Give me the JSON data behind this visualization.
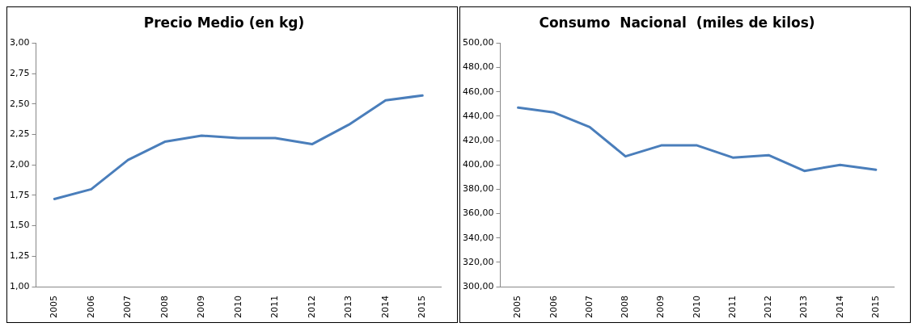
{
  "chart_data": [
    {
      "type": "line",
      "title": "Precio Medio (en kg)",
      "categories": [
        "2005",
        "2006",
        "2007",
        "2008",
        "2009",
        "2010",
        "2011",
        "2012",
        "2013",
        "2014",
        "2015"
      ],
      "series": [
        {
          "color": "#4a7ebb",
          "values": [
            1.72,
            1.8,
            2.04,
            2.19,
            2.24,
            2.22,
            2.22,
            2.17,
            2.33,
            2.53,
            2.57
          ]
        }
      ],
      "ylim": [
        1,
        3
      ],
      "yticks": [
        {
          "value": 1,
          "label": "1,00"
        },
        {
          "value": 1.25,
          "label": "1,25"
        },
        {
          "value": 1.5,
          "label": "1,50"
        },
        {
          "value": 1.75,
          "label": "1,75"
        },
        {
          "value": 2,
          "label": "2,00"
        },
        {
          "value": 2.25,
          "label": "2,25"
        },
        {
          "value": 2.5,
          "label": "2,50"
        },
        {
          "value": 2.75,
          "label": "2,75"
        },
        {
          "value": 3,
          "label": "3,00"
        }
      ],
      "grid": false,
      "legend": false,
      "marker": "none",
      "line_style": "solid"
    },
    {
      "type": "line",
      "title": "Consumo  Nacional  (miles de kilos)",
      "categories": [
        "2005",
        "2006",
        "2007",
        "2008",
        "2009",
        "2010",
        "2011",
        "2012",
        "2013",
        "2014",
        "2015"
      ],
      "series": [
        {
          "color": "#4a7ebb",
          "values": [
            447,
            443,
            431,
            407,
            416,
            416,
            406,
            408,
            395,
            400,
            396
          ]
        }
      ],
      "ylim": [
        300,
        500
      ],
      "yticks": [
        {
          "value": 300,
          "label": "300,00"
        },
        {
          "value": 320,
          "label": "320,00"
        },
        {
          "value": 340,
          "label": "340,00"
        },
        {
          "value": 360,
          "label": "360,00"
        },
        {
          "value": 380,
          "label": "380,00"
        },
        {
          "value": 400,
          "label": "400,00"
        },
        {
          "value": 420,
          "label": "420,00"
        },
        {
          "value": 440,
          "label": "440,00"
        },
        {
          "value": 460,
          "label": "460,00"
        },
        {
          "value": 480,
          "label": "480,00"
        },
        {
          "value": 500,
          "label": "500,00"
        }
      ],
      "grid": false,
      "legend": false,
      "marker": "none",
      "line_style": "solid"
    }
  ]
}
